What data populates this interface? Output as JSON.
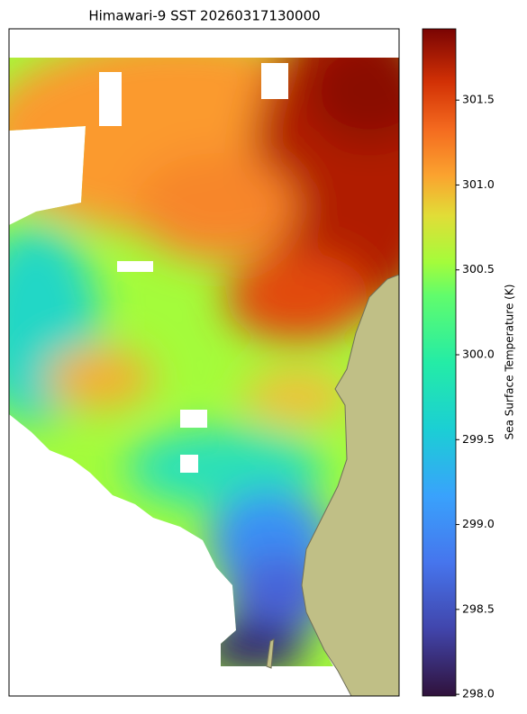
{
  "chart_data": {
    "type": "heatmap-map",
    "title": "Himawari-9 SST 20260317130000",
    "colorbar_label": "Sea Surface Temperature (K)",
    "clim": [
      297.99,
      301.92
    ],
    "cticks": [
      {
        "value": 298.0,
        "label": "298.0"
      },
      {
        "value": 298.5,
        "label": "298.5"
      },
      {
        "value": 299.0,
        "label": "299.0"
      },
      {
        "value": 299.5,
        "label": "299.5"
      },
      {
        "value": 300.0,
        "label": "300.0"
      },
      {
        "value": 300.5,
        "label": "300.5"
      },
      {
        "value": 301.0,
        "label": "301.0"
      },
      {
        "value": 301.5,
        "label": "301.5"
      }
    ]
  }
}
